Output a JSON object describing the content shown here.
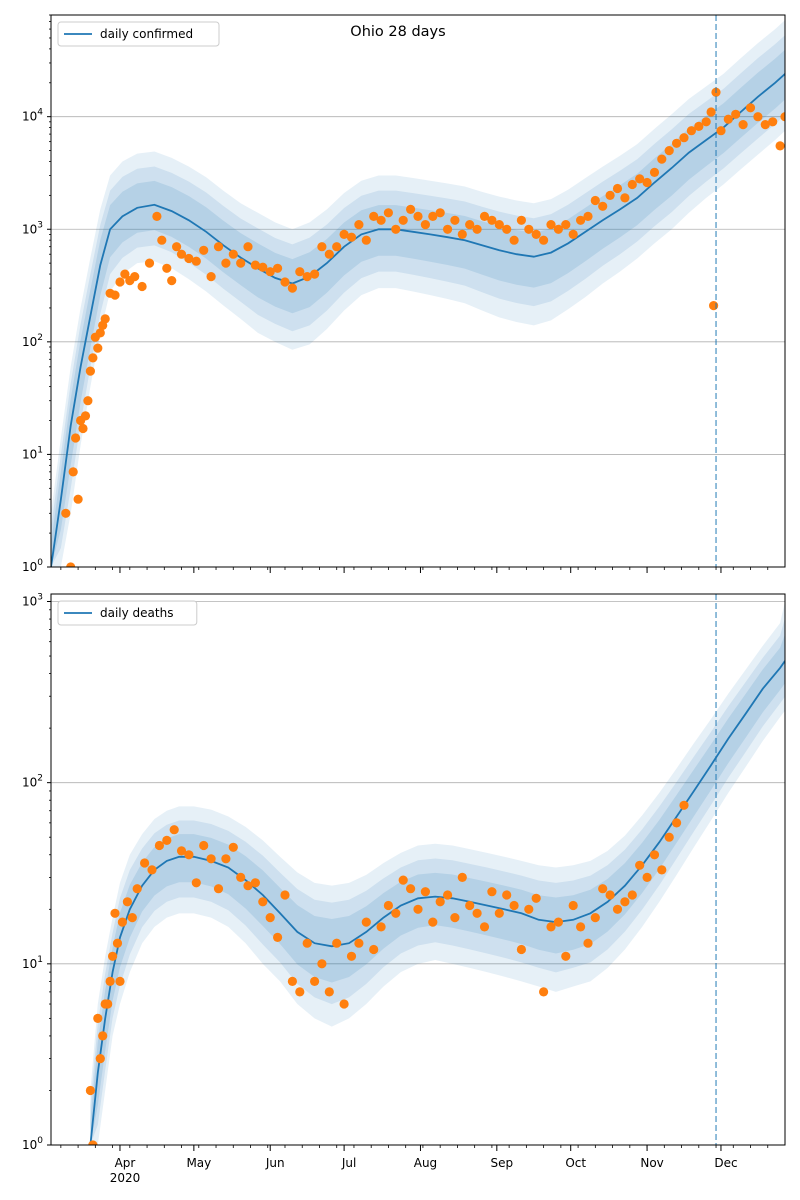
{
  "figure": {
    "title": "Ohio 28 days",
    "colors": {
      "model": "#1f77b4",
      "observed": "#ff7f0e",
      "grid": "#b0b0b0",
      "band": "#1f77b4",
      "marker_line": "#1f77b4"
    }
  },
  "chart_data": [
    {
      "type": "line",
      "title": "Ohio 28 days",
      "legend": {
        "position": "top-left",
        "entries": [
          "daily confirmed"
        ]
      },
      "yscale": "log",
      "ylim": [
        1,
        80000
      ],
      "xlim": [
        "2020-03-04",
        "2020-12-27"
      ],
      "grid": "y-major",
      "yticks": [
        {
          "value": 1,
          "base": "10",
          "exp": "0"
        },
        {
          "value": 10,
          "base": "10",
          "exp": "1"
        },
        {
          "value": 100,
          "base": "10",
          "exp": "2"
        },
        {
          "value": 1000,
          "base": "10",
          "exp": "3"
        },
        {
          "value": 10000,
          "base": "10",
          "exp": "4"
        }
      ],
      "vline": "2020-11-29",
      "series": [
        {
          "name": "daily confirmed",
          "kind": "model",
          "x": [
            "2020-03-04",
            "2020-03-08",
            "2020-03-12",
            "2020-03-16",
            "2020-03-20",
            "2020-03-24",
            "2020-03-28",
            "2020-04-02",
            "2020-04-08",
            "2020-04-15",
            "2020-04-22",
            "2020-04-29",
            "2020-05-06",
            "2020-05-13",
            "2020-05-20",
            "2020-05-27",
            "2020-06-03",
            "2020-06-10",
            "2020-06-17",
            "2020-06-24",
            "2020-07-01",
            "2020-07-08",
            "2020-07-15",
            "2020-07-22",
            "2020-07-29",
            "2020-08-05",
            "2020-08-12",
            "2020-08-19",
            "2020-08-26",
            "2020-09-02",
            "2020-09-09",
            "2020-09-16",
            "2020-09-23",
            "2020-09-30",
            "2020-10-07",
            "2020-10-14",
            "2020-10-21",
            "2020-10-28",
            "2020-11-04",
            "2020-11-11",
            "2020-11-18",
            "2020-11-25",
            "2020-12-02",
            "2020-12-09",
            "2020-12-16",
            "2020-12-23",
            "2020-12-27"
          ],
          "values": [
            1,
            4,
            18,
            60,
            170,
            480,
            1000,
            1300,
            1550,
            1650,
            1450,
            1200,
            950,
            720,
            560,
            450,
            370,
            330,
            380,
            500,
            700,
            900,
            1000,
            1000,
            950,
            900,
            850,
            800,
            720,
            650,
            600,
            570,
            620,
            750,
            950,
            1200,
            1500,
            1900,
            2600,
            3500,
            4800,
            6200,
            8000,
            11000,
            15000,
            20000,
            24000
          ],
          "lower": [
            1,
            1,
            3,
            12,
            40,
            120,
            280,
            400,
            500,
            520,
            450,
            360,
            280,
            210,
            160,
            120,
            100,
            85,
            95,
            130,
            190,
            260,
            300,
            300,
            280,
            260,
            240,
            220,
            190,
            165,
            150,
            140,
            155,
            195,
            250,
            330,
            420,
            550,
            750,
            1000,
            1400,
            1900,
            2500,
            3400,
            4600,
            6200,
            7500
          ],
          "upper": [
            3,
            14,
            60,
            200,
            560,
            1500,
            3000,
            4000,
            4700,
            4900,
            4300,
            3600,
            2900,
            2200,
            1700,
            1400,
            1150,
            1000,
            1150,
            1500,
            2100,
            2700,
            3000,
            3000,
            2850,
            2700,
            2550,
            2400,
            2150,
            1950,
            1800,
            1700,
            1850,
            2250,
            2850,
            3600,
            4500,
            5700,
            7800,
            10500,
            14400,
            18600,
            24000,
            33000,
            45000,
            60000,
            72000
          ]
        },
        {
          "name": "observed",
          "kind": "points",
          "x": [
            "2020-03-10",
            "2020-03-12",
            "2020-03-13",
            "2020-03-14",
            "2020-03-15",
            "2020-03-16",
            "2020-03-17",
            "2020-03-18",
            "2020-03-19",
            "2020-03-20",
            "2020-03-21",
            "2020-03-22",
            "2020-03-23",
            "2020-03-24",
            "2020-03-25",
            "2020-03-26",
            "2020-03-28",
            "2020-03-30",
            "2020-04-01",
            "2020-04-03",
            "2020-04-05",
            "2020-04-07",
            "2020-04-10",
            "2020-04-13",
            "2020-04-16",
            "2020-04-18",
            "2020-04-20",
            "2020-04-22",
            "2020-04-24",
            "2020-04-26",
            "2020-04-29",
            "2020-05-02",
            "2020-05-05",
            "2020-05-08",
            "2020-05-11",
            "2020-05-14",
            "2020-05-17",
            "2020-05-20",
            "2020-05-23",
            "2020-05-26",
            "2020-05-29",
            "2020-06-01",
            "2020-06-04",
            "2020-06-07",
            "2020-06-10",
            "2020-06-13",
            "2020-06-16",
            "2020-06-19",
            "2020-06-22",
            "2020-06-25",
            "2020-06-28",
            "2020-07-01",
            "2020-07-04",
            "2020-07-07",
            "2020-07-10",
            "2020-07-13",
            "2020-07-16",
            "2020-07-19",
            "2020-07-22",
            "2020-07-25",
            "2020-07-28",
            "2020-07-31",
            "2020-08-03",
            "2020-08-06",
            "2020-08-09",
            "2020-08-12",
            "2020-08-15",
            "2020-08-18",
            "2020-08-21",
            "2020-08-24",
            "2020-08-27",
            "2020-08-30",
            "2020-09-02",
            "2020-09-05",
            "2020-09-08",
            "2020-09-11",
            "2020-09-14",
            "2020-09-17",
            "2020-09-20",
            "2020-09-23",
            "2020-09-26",
            "2020-09-29",
            "2020-10-02",
            "2020-10-05",
            "2020-10-08",
            "2020-10-11",
            "2020-10-14",
            "2020-10-17",
            "2020-10-20",
            "2020-10-23",
            "2020-10-26",
            "2020-10-29",
            "2020-11-01",
            "2020-11-04",
            "2020-11-07",
            "2020-11-10",
            "2020-11-13",
            "2020-11-16",
            "2020-11-19",
            "2020-11-22",
            "2020-11-25",
            "2020-11-27",
            "2020-11-28",
            "2020-11-29",
            "2020-12-01",
            "2020-12-04",
            "2020-12-07",
            "2020-12-10",
            "2020-12-13",
            "2020-12-16",
            "2020-12-19",
            "2020-12-22",
            "2020-12-25",
            "2020-12-27"
          ],
          "values": [
            3,
            1,
            7,
            14,
            4,
            20,
            17,
            22,
            30,
            55,
            72,
            110,
            88,
            120,
            140,
            160,
            270,
            260,
            340,
            400,
            350,
            380,
            310,
            500,
            1300,
            800,
            450,
            350,
            700,
            600,
            550,
            520,
            650,
            380,
            700,
            500,
            600,
            500,
            700,
            480,
            460,
            420,
            450,
            340,
            300,
            420,
            380,
            400,
            700,
            600,
            700,
            900,
            850,
            1100,
            800,
            1300,
            1200,
            1400,
            1000,
            1200,
            1500,
            1300,
            1100,
            1300,
            1400,
            1000,
            1200,
            900,
            1100,
            1000,
            1300,
            1200,
            1100,
            1000,
            800,
            1200,
            1000,
            900,
            800,
            1100,
            1000,
            1100,
            900,
            1200,
            1300,
            1800,
            1600,
            2000,
            2300,
            1900,
            2500,
            2800,
            2600,
            3200,
            4200,
            5000,
            5800,
            6500,
            7500,
            8200,
            9000,
            11000,
            210,
            16500,
            7500,
            9500,
            10500,
            8500,
            12000,
            10000,
            8500,
            9000,
            5500,
            10000
          ]
        }
      ]
    },
    {
      "type": "line",
      "legend": {
        "position": "top-left",
        "entries": [
          "daily deaths"
        ]
      },
      "yscale": "log",
      "ylim": [
        1,
        1100
      ],
      "xlim": [
        "2020-03-04",
        "2020-12-27"
      ],
      "grid": "y-major",
      "yticks": [
        {
          "value": 1,
          "base": "10",
          "exp": "0"
        },
        {
          "value": 10,
          "base": "10",
          "exp": "1"
        },
        {
          "value": 100,
          "base": "10",
          "exp": "2"
        },
        {
          "value": 1000,
          "base": "10",
          "exp": "3"
        }
      ],
      "xticks": [
        {
          "date": "2020-04-01",
          "label": "Apr",
          "sublabel": "2020"
        },
        {
          "date": "2020-05-01",
          "label": "May"
        },
        {
          "date": "2020-06-01",
          "label": "Jun"
        },
        {
          "date": "2020-07-01",
          "label": "Jul"
        },
        {
          "date": "2020-08-01",
          "label": "Aug"
        },
        {
          "date": "2020-09-01",
          "label": "Sep"
        },
        {
          "date": "2020-10-01",
          "label": "Oct"
        },
        {
          "date": "2020-11-01",
          "label": "Nov"
        },
        {
          "date": "2020-12-01",
          "label": "Dec"
        }
      ],
      "vline": "2020-11-29",
      "series": [
        {
          "name": "daily deaths",
          "kind": "model",
          "x": [
            "2020-03-20",
            "2020-03-23",
            "2020-03-26",
            "2020-03-29",
            "2020-04-01",
            "2020-04-05",
            "2020-04-10",
            "2020-04-15",
            "2020-04-20",
            "2020-04-25",
            "2020-05-01",
            "2020-05-08",
            "2020-05-15",
            "2020-05-22",
            "2020-05-29",
            "2020-06-05",
            "2020-06-12",
            "2020-06-19",
            "2020-06-26",
            "2020-07-03",
            "2020-07-10",
            "2020-07-17",
            "2020-07-24",
            "2020-07-31",
            "2020-08-07",
            "2020-08-14",
            "2020-08-21",
            "2020-08-28",
            "2020-09-04",
            "2020-09-11",
            "2020-09-18",
            "2020-09-25",
            "2020-10-02",
            "2020-10-09",
            "2020-10-16",
            "2020-10-23",
            "2020-10-30",
            "2020-11-06",
            "2020-11-13",
            "2020-11-20",
            "2020-11-27",
            "2020-12-04",
            "2020-12-11",
            "2020-12-18",
            "2020-12-25",
            "2020-12-27"
          ],
          "values": [
            1,
            2.5,
            5,
            9,
            14,
            20,
            27,
            33,
            37,
            39,
            39,
            37,
            34,
            29,
            24,
            19,
            15,
            13,
            12.5,
            13,
            15,
            18,
            21,
            23,
            23.5,
            23,
            22,
            21,
            20,
            19,
            17.5,
            17,
            17.5,
            19,
            22,
            27,
            35,
            47,
            65,
            90,
            125,
            175,
            240,
            330,
            430,
            470
          ],
          "lower": [
            1,
            1,
            2,
            4,
            6,
            9,
            13,
            16,
            18,
            19,
            19,
            18,
            16,
            13,
            10,
            8,
            6,
            5,
            4.5,
            5,
            6,
            7.5,
            9,
            10,
            10.5,
            10,
            9.5,
            9,
            8.5,
            8,
            7.5,
            7,
            7.5,
            8,
            9.5,
            12,
            16,
            22,
            31,
            44,
            62,
            88,
            122,
            170,
            230,
            250
          ],
          "upper": [
            2,
            6,
            11,
            18,
            28,
            40,
            52,
            63,
            70,
            74,
            74,
            71,
            65,
            57,
            48,
            39,
            32,
            28,
            27,
            28,
            31,
            36,
            41,
            45,
            46,
            45,
            43,
            41,
            39,
            37,
            35,
            34,
            35,
            37,
            42,
            51,
            66,
            88,
            120,
            165,
            225,
            310,
            420,
            570,
            760,
            1000
          ]
        },
        {
          "name": "observed",
          "kind": "points",
          "x": [
            "2020-03-20",
            "2020-03-21",
            "2020-03-23",
            "2020-03-24",
            "2020-03-25",
            "2020-03-26",
            "2020-03-27",
            "2020-03-28",
            "2020-03-29",
            "2020-03-30",
            "2020-03-31",
            "2020-04-01",
            "2020-04-02",
            "2020-04-04",
            "2020-04-06",
            "2020-04-08",
            "2020-04-11",
            "2020-04-14",
            "2020-04-17",
            "2020-04-20",
            "2020-04-23",
            "2020-04-26",
            "2020-04-29",
            "2020-05-02",
            "2020-05-05",
            "2020-05-08",
            "2020-05-11",
            "2020-05-14",
            "2020-05-17",
            "2020-05-20",
            "2020-05-23",
            "2020-05-26",
            "2020-05-29",
            "2020-06-01",
            "2020-06-04",
            "2020-06-07",
            "2020-06-10",
            "2020-06-13",
            "2020-06-16",
            "2020-06-19",
            "2020-06-22",
            "2020-06-25",
            "2020-06-28",
            "2020-07-01",
            "2020-07-04",
            "2020-07-07",
            "2020-07-10",
            "2020-07-13",
            "2020-07-16",
            "2020-07-19",
            "2020-07-22",
            "2020-07-25",
            "2020-07-28",
            "2020-07-31",
            "2020-08-03",
            "2020-08-06",
            "2020-08-09",
            "2020-08-12",
            "2020-08-15",
            "2020-08-18",
            "2020-08-21",
            "2020-08-24",
            "2020-08-27",
            "2020-08-30",
            "2020-09-02",
            "2020-09-05",
            "2020-09-08",
            "2020-09-11",
            "2020-09-14",
            "2020-09-17",
            "2020-09-20",
            "2020-09-23",
            "2020-09-26",
            "2020-09-29",
            "2020-10-02",
            "2020-10-05",
            "2020-10-08",
            "2020-10-11",
            "2020-10-14",
            "2020-10-17",
            "2020-10-20",
            "2020-10-23",
            "2020-10-26",
            "2020-10-29",
            "2020-11-01",
            "2020-11-04",
            "2020-11-07",
            "2020-11-10",
            "2020-11-13",
            "2020-11-16"
          ],
          "values": [
            2,
            1,
            5,
            3,
            4,
            6,
            6,
            8,
            11,
            19,
            13,
            8,
            17,
            22,
            18,
            26,
            36,
            33,
            45,
            48,
            55,
            42,
            40,
            28,
            45,
            38,
            26,
            38,
            44,
            30,
            27,
            28,
            22,
            18,
            14,
            24,
            8,
            7,
            13,
            8,
            10,
            7,
            13,
            6,
            11,
            13,
            17,
            12,
            16,
            21,
            19,
            29,
            26,
            20,
            25,
            17,
            22,
            24,
            18,
            30,
            21,
            19,
            16,
            25,
            19,
            24,
            21,
            12,
            20,
            23,
            7,
            16,
            17,
            11,
            21,
            16,
            13,
            18,
            26,
            24,
            20,
            22,
            24,
            35,
            30,
            40,
            33,
            50,
            60,
            75
          ]
        }
      ]
    }
  ]
}
